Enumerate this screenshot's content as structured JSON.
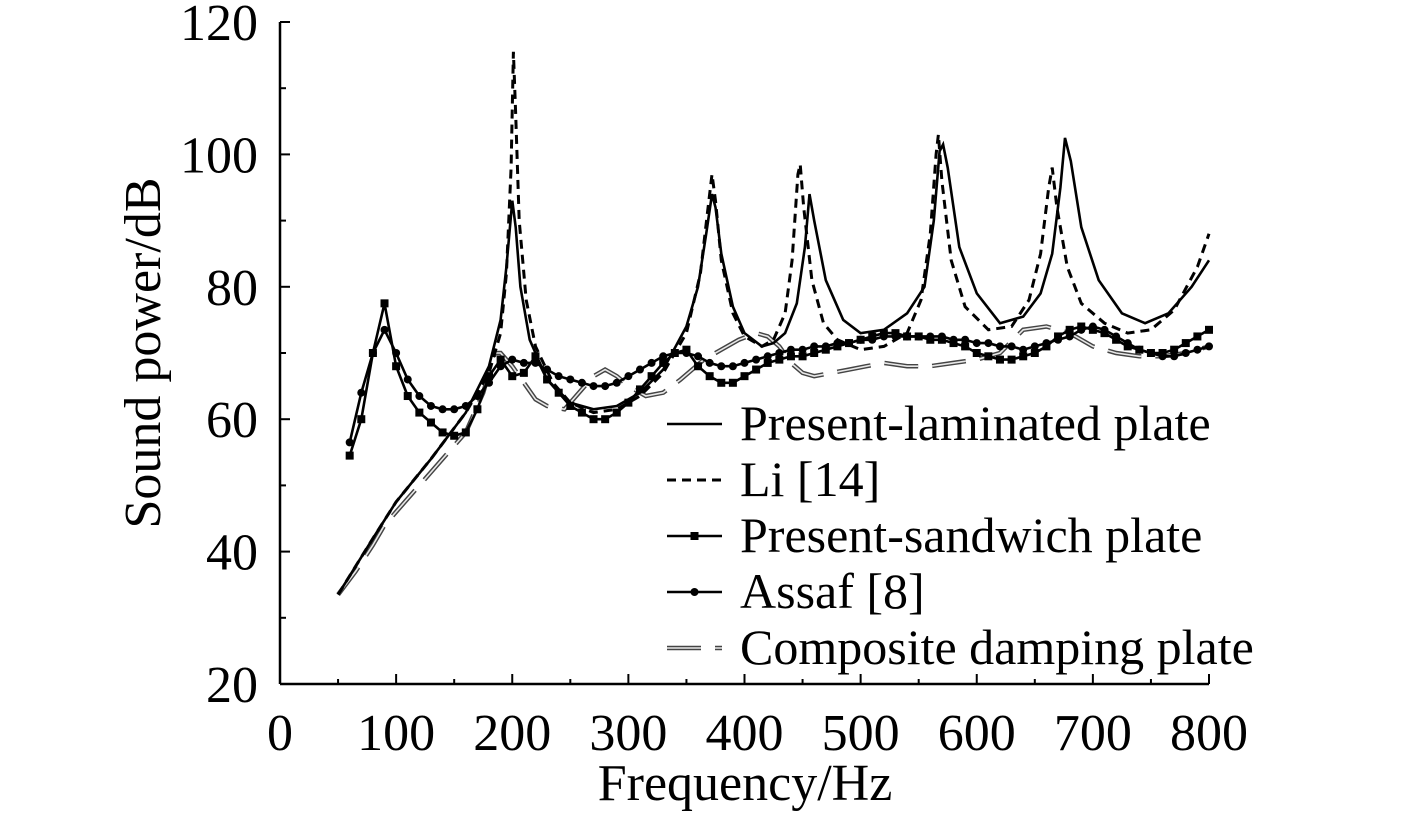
{
  "chart_data": {
    "type": "line",
    "xlabel": "Frequency/Hz",
    "ylabel": "Sound power/dB",
    "xlim": [
      0,
      800
    ],
    "ylim": [
      20,
      120
    ],
    "xticks": [
      "0",
      "100",
      "200",
      "300",
      "400",
      "500",
      "600",
      "700",
      "800"
    ],
    "yticks": [
      "20",
      "40",
      "60",
      "80",
      "100",
      "120"
    ],
    "grid": false,
    "legend_position": "bottom-right",
    "series": [
      {
        "name": "Present-laminated plate",
        "style": "solid",
        "color": "#000000",
        "x": [
          50,
          80,
          100,
          130,
          160,
          180,
          190,
          195,
          200,
          203,
          207,
          215,
          230,
          250,
          270,
          290,
          310,
          330,
          350,
          360,
          367,
          372,
          375,
          380,
          390,
          400,
          415,
          425,
          435,
          445,
          452,
          456,
          460,
          470,
          485,
          500,
          520,
          540,
          555,
          563,
          568,
          571,
          575,
          585,
          600,
          620,
          640,
          655,
          665,
          672,
          676,
          681,
          690,
          705,
          725,
          745,
          765,
          785,
          800
        ],
        "y": [
          33.5,
          42,
          47.5,
          54,
          61,
          68,
          75,
          83,
          93,
          89,
          80,
          72,
          66,
          62.5,
          61.5,
          62,
          64,
          67.5,
          74,
          80,
          88,
          94,
          92,
          85,
          77,
          73,
          71,
          71.5,
          73,
          77.5,
          86,
          94,
          90,
          81,
          75,
          73,
          73.5,
          76,
          80,
          90,
          100.5,
          101.5,
          98,
          86,
          79,
          74.5,
          75.5,
          79,
          85,
          95,
          102.5,
          99,
          89,
          81,
          76,
          74.5,
          76,
          80,
          84
        ]
      },
      {
        "name": "Li [14]",
        "style": "dashed",
        "color": "#000000",
        "x": [
          50,
          80,
          100,
          130,
          160,
          180,
          190,
          195,
          199,
          201,
          203,
          206,
          212,
          220,
          235,
          250,
          270,
          290,
          310,
          330,
          350,
          362,
          368,
          372,
          375,
          380,
          390,
          400,
          415,
          425,
          435,
          441,
          446,
          448,
          451,
          458,
          468,
          480,
          500,
          520,
          540,
          552,
          560,
          565,
          567,
          570,
          578,
          590,
          610,
          630,
          645,
          655,
          662,
          665,
          669,
          678,
          690,
          710,
          730,
          750,
          770,
          790,
          800
        ],
        "y": [
          33.5,
          42,
          47.5,
          54,
          61,
          67,
          73,
          82,
          98,
          115.5,
          106,
          90,
          78,
          71,
          65.5,
          62.5,
          61,
          61.5,
          63.5,
          67,
          73,
          82,
          91,
          97,
          93,
          84,
          76,
          72.5,
          71,
          72,
          76,
          84,
          97,
          98.5,
          92,
          81,
          74.5,
          72,
          70.5,
          71,
          73,
          78,
          88,
          100,
          103,
          96,
          84,
          77,
          73.5,
          74,
          78,
          85,
          95,
          98,
          92,
          83,
          77.5,
          74.5,
          73,
          73.5,
          76.5,
          83,
          88
        ]
      },
      {
        "name": "Present-sandwich plate",
        "style": "solid-square-markers",
        "color": "#000000",
        "x": [
          60,
          70,
          80,
          90,
          100,
          110,
          120,
          130,
          140,
          150,
          160,
          170,
          180,
          190,
          200,
          210,
          220,
          230,
          240,
          250,
          260,
          270,
          280,
          290,
          300,
          310,
          320,
          330,
          340,
          350,
          360,
          370,
          380,
          390,
          400,
          410,
          420,
          430,
          440,
          450,
          460,
          470,
          480,
          490,
          500,
          510,
          520,
          530,
          540,
          550,
          560,
          570,
          580,
          590,
          600,
          610,
          620,
          630,
          640,
          650,
          660,
          670,
          680,
          690,
          700,
          710,
          720,
          730,
          740,
          750,
          760,
          770,
          780,
          790,
          800
        ],
        "y": [
          54.5,
          60,
          70,
          77.5,
          68,
          63.5,
          61,
          59.5,
          58,
          57.5,
          58,
          61.5,
          66.5,
          69,
          66.5,
          67,
          69.5,
          66,
          64,
          62,
          61,
          60,
          60,
          61,
          62.5,
          64.5,
          66.5,
          68.5,
          70,
          70.5,
          68,
          66.5,
          65.5,
          65.5,
          66.5,
          67.5,
          68.5,
          69,
          69.5,
          69.5,
          70,
          70.5,
          71,
          71.5,
          72,
          72.5,
          73,
          73,
          72.5,
          72.5,
          72,
          72,
          71.5,
          71,
          70,
          69.5,
          69,
          69,
          69.5,
          70,
          71,
          72.5,
          73.5,
          74,
          73.5,
          73,
          72,
          71,
          70.5,
          70,
          70,
          70.5,
          71.5,
          72.5,
          73.5
        ]
      },
      {
        "name": "Assaf [8]",
        "style": "solid-circle-markers",
        "color": "#000000",
        "x": [
          60,
          70,
          80,
          90,
          100,
          110,
          120,
          130,
          140,
          150,
          160,
          170,
          180,
          190,
          200,
          210,
          220,
          230,
          240,
          250,
          260,
          270,
          280,
          290,
          300,
          310,
          320,
          330,
          340,
          350,
          360,
          370,
          380,
          390,
          400,
          410,
          420,
          430,
          440,
          450,
          460,
          470,
          480,
          490,
          500,
          510,
          520,
          530,
          540,
          550,
          560,
          570,
          580,
          590,
          600,
          610,
          620,
          630,
          640,
          650,
          660,
          670,
          680,
          690,
          700,
          710,
          720,
          730,
          740,
          750,
          760,
          770,
          780,
          790,
          800
        ],
        "y": [
          56.5,
          64,
          70,
          73.5,
          70,
          66,
          63.5,
          62,
          61.5,
          61.5,
          62,
          63.5,
          65.5,
          68,
          69,
          68.5,
          68.5,
          67.5,
          66.5,
          66,
          65.5,
          65,
          65,
          65.5,
          66.5,
          67.5,
          68.5,
          69.5,
          70,
          70,
          69.5,
          68.5,
          68,
          68,
          68.5,
          69,
          69.5,
          70,
          70.5,
          70.5,
          71,
          71,
          71.5,
          71.5,
          72,
          72,
          72.5,
          72.5,
          72.5,
          72.5,
          72.5,
          72.5,
          72,
          72,
          71.5,
          71.5,
          71,
          71,
          70.5,
          71,
          71.5,
          72,
          72.5,
          73.5,
          74,
          73.5,
          72.5,
          71.5,
          70.5,
          70,
          69.5,
          69.5,
          70,
          70.5,
          71
        ]
      },
      {
        "name": "Composite damping plate",
        "style": "long-dash-double",
        "color": "#555555",
        "x": [
          50,
          65,
          80,
          90,
          100,
          110,
          125,
          140,
          160,
          175,
          185,
          190,
          195,
          200,
          210,
          220,
          230,
          245,
          260,
          270,
          280,
          290,
          300,
          315,
          330,
          345,
          355,
          365,
          380,
          395,
          410,
          420,
          430,
          440,
          450,
          460,
          475,
          490,
          505,
          520,
          540,
          560,
          580,
          600,
          620,
          640,
          660,
          680,
          700,
          720,
          740,
          760,
          780,
          800
        ],
        "y": [
          33.5,
          37,
          41,
          44,
          46,
          48,
          51,
          54,
          58,
          64,
          70,
          70,
          69,
          68,
          65.5,
          63,
          62,
          61.5,
          64.5,
          66.5,
          67.5,
          66.5,
          65,
          63.5,
          64,
          66,
          67.5,
          69,
          70.5,
          72,
          73,
          72.5,
          71,
          68.5,
          67,
          66.5,
          67,
          67.5,
          68,
          68.5,
          68,
          68,
          68.5,
          69,
          70,
          73.5,
          74,
          73,
          71,
          70,
          69.5,
          69.5,
          70,
          71
        ]
      }
    ]
  }
}
